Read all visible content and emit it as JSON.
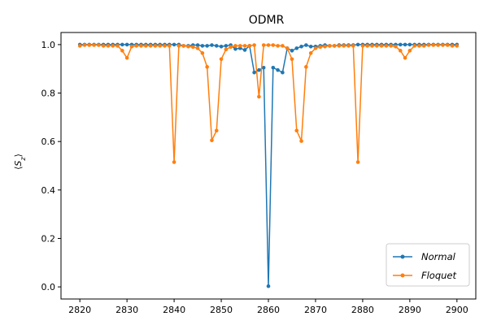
{
  "chart_data": {
    "type": "line",
    "title": "ODMR",
    "xlabel": "",
    "ylabel": "⟨S_z⟩",
    "xlim": [
      2816,
      2904
    ],
    "ylim": [
      -0.05,
      1.05
    ],
    "xticks": [
      2820,
      2830,
      2840,
      2850,
      2860,
      2870,
      2880,
      2890,
      2900
    ],
    "yticks": [
      0.0,
      0.2,
      0.4,
      0.6,
      0.8,
      1.0
    ],
    "grid": false,
    "legend_position": "bottom-right",
    "x": [
      2820,
      2821,
      2822,
      2823,
      2824,
      2825,
      2826,
      2827,
      2828,
      2829,
      2830,
      2831,
      2832,
      2833,
      2834,
      2835,
      2836,
      2837,
      2838,
      2839,
      2840,
      2841,
      2842,
      2843,
      2844,
      2845,
      2846,
      2847,
      2848,
      2849,
      2850,
      2851,
      2852,
      2853,
      2854,
      2855,
      2856,
      2857,
      2858,
      2859,
      2860,
      2861,
      2862,
      2863,
      2864,
      2865,
      2866,
      2867,
      2868,
      2869,
      2870,
      2871,
      2872,
      2873,
      2874,
      2875,
      2876,
      2877,
      2878,
      2879,
      2880,
      2881,
      2882,
      2883,
      2884,
      2885,
      2886,
      2887,
      2888,
      2889,
      2890,
      2891,
      2892,
      2893,
      2894,
      2895,
      2896,
      2897,
      2898,
      2899,
      2900
    ],
    "series": [
      {
        "name": "Normal",
        "color": "#1f77b4",
        "values": [
          1.0,
          1.0,
          1.0,
          1.0,
          1.0,
          1.0,
          1.0,
          1.0,
          1.0,
          1.0,
          1.0,
          1.0,
          1.0,
          1.0,
          1.0,
          1.0,
          1.0,
          1.0,
          1.0,
          1.0,
          1.0,
          1.0,
          0.995,
          0.995,
          0.998,
          0.998,
          0.995,
          0.995,
          0.998,
          0.995,
          0.992,
          0.995,
          0.998,
          0.982,
          0.985,
          0.978,
          0.995,
          0.885,
          0.895,
          0.905,
          0.003,
          0.905,
          0.895,
          0.885,
          0.985,
          0.975,
          0.985,
          0.992,
          0.998,
          0.992,
          0.992,
          0.995,
          0.998,
          0.995,
          0.995,
          0.998,
          0.998,
          0.998,
          0.998,
          1.0,
          1.0,
          1.0,
          1.0,
          1.0,
          1.0,
          1.0,
          1.0,
          1.0,
          1.0,
          1.0,
          1.0,
          1.0,
          1.0,
          1.0,
          1.0,
          1.0,
          1.0,
          1.0,
          1.0,
          1.0,
          1.0
        ]
      },
      {
        "name": "Floquet",
        "color": "#ff7f0e",
        "values": [
          0.995,
          0.998,
          0.998,
          0.998,
          0.998,
          0.995,
          0.995,
          0.995,
          0.995,
          0.975,
          0.945,
          0.992,
          0.995,
          0.995,
          0.995,
          0.995,
          0.995,
          0.995,
          0.995,
          0.995,
          0.515,
          0.995,
          0.995,
          0.992,
          0.99,
          0.985,
          0.965,
          0.908,
          0.605,
          0.645,
          0.94,
          0.98,
          0.99,
          0.995,
          0.995,
          0.995,
          0.995,
          0.998,
          0.785,
          0.998,
          0.998,
          0.998,
          0.995,
          0.995,
          0.985,
          0.94,
          0.645,
          0.602,
          0.908,
          0.965,
          0.985,
          0.99,
          0.992,
          0.995,
          0.995,
          0.995,
          0.995,
          0.995,
          0.995,
          0.515,
          0.995,
          0.995,
          0.995,
          0.995,
          0.995,
          0.995,
          0.995,
          0.992,
          0.975,
          0.945,
          0.975,
          0.995,
          0.995,
          0.995,
          0.998,
          0.998,
          0.998,
          0.998,
          0.998,
          0.995,
          0.995
        ]
      }
    ]
  }
}
